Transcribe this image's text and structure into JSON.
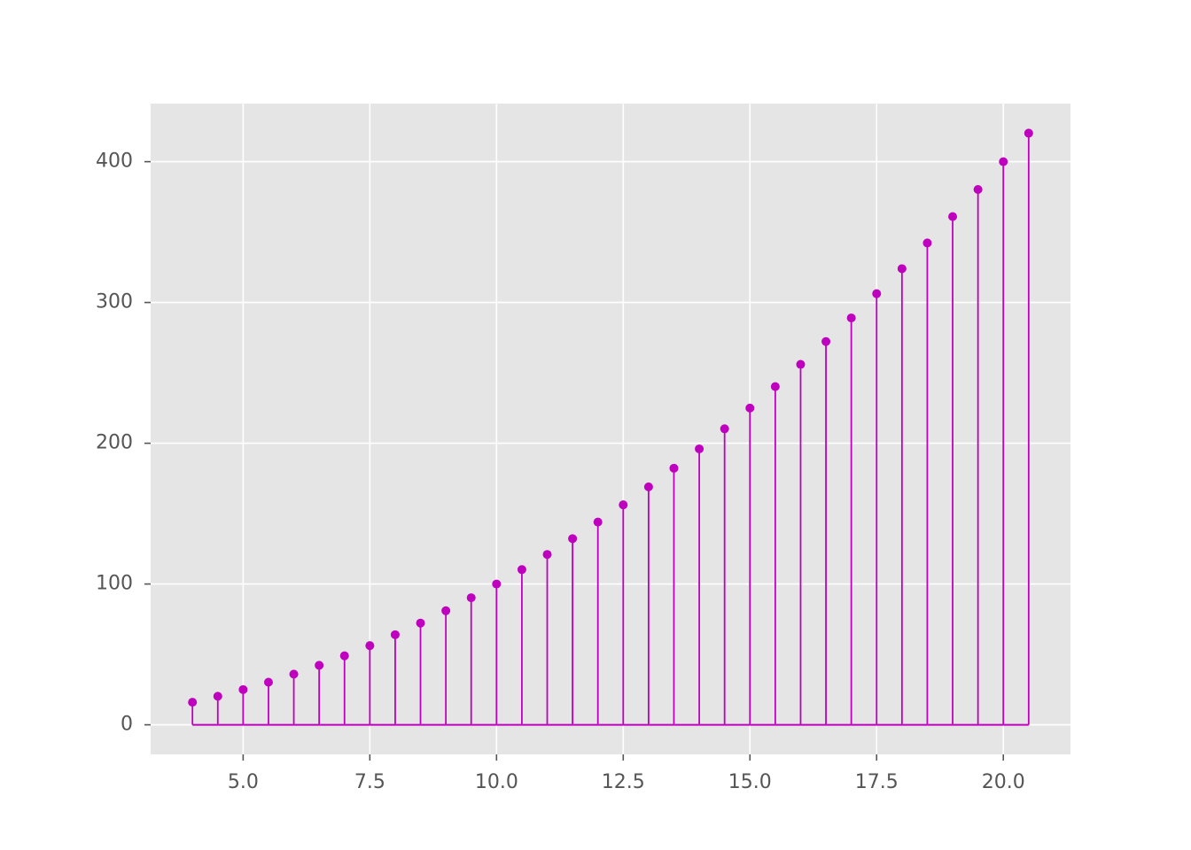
{
  "chart_data": {
    "type": "stem",
    "x": [
      4,
      4.5,
      5,
      5.5,
      6,
      6.5,
      7,
      7.5,
      8,
      8.5,
      9,
      9.5,
      10,
      10.5,
      11,
      11.5,
      12,
      12.5,
      13,
      13.5,
      14,
      14.5,
      15,
      15.5,
      16,
      16.5,
      17,
      17.5,
      18,
      18.5,
      19,
      19.5,
      20,
      20.5
    ],
    "values": [
      16,
      20.25,
      25,
      30.25,
      36,
      42.25,
      49,
      56.25,
      64,
      72.25,
      81,
      90.25,
      100,
      110.25,
      121,
      132.25,
      144,
      156.25,
      169,
      182.25,
      196,
      210.25,
      225,
      240.25,
      256,
      272.25,
      289,
      306.25,
      324,
      342.25,
      361,
      380.25,
      400,
      420.25
    ],
    "color": "#bf00bf",
    "xlim": [
      3.175,
      21.325
    ],
    "ylim": [
      -21.0125,
      441.2625
    ],
    "xticks": [
      {
        "value": 5,
        "label": "5.0"
      },
      {
        "value": 7.5,
        "label": "7.5"
      },
      {
        "value": 10,
        "label": "10.0"
      },
      {
        "value": 12.5,
        "label": "12.5"
      },
      {
        "value": 15,
        "label": "15.0"
      },
      {
        "value": 17.5,
        "label": "17.5"
      },
      {
        "value": 20,
        "label": "20.0"
      }
    ],
    "yticks": [
      0,
      100,
      200,
      300,
      400
    ],
    "grid": true
  }
}
